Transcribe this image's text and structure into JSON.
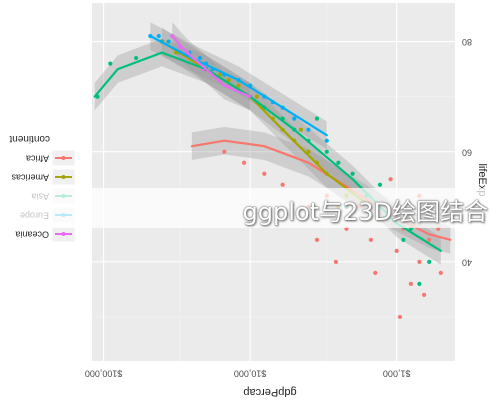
{
  "chart_data": {
    "type": "scatter",
    "orientation": "rotated-180",
    "xlabel": "gdpPercap",
    "ylabel": "lifeExp",
    "x_scale": "log10",
    "xlim": [
      400,
      120000
    ],
    "ylim": [
      22,
      87
    ],
    "x_ticks": [
      {
        "value": 1000,
        "label": "$1,000"
      },
      {
        "value": 10000,
        "label": "$10,000"
      },
      {
        "value": 100000,
        "label": "$100,000"
      }
    ],
    "y_ticks": [
      {
        "value": 40,
        "label": "40"
      },
      {
        "value": 60,
        "label": "60"
      },
      {
        "value": 80,
        "label": "80"
      }
    ],
    "grid": true,
    "smoothers": true,
    "legend": {
      "title": "continent",
      "placement": "left",
      "entries": [
        {
          "name": "Africa",
          "color": "#F8766D"
        },
        {
          "name": "Americas",
          "color": "#A3A500"
        },
        {
          "name": "Asia",
          "color": "#00BF7D"
        },
        {
          "name": "Europe",
          "color": "#00B0F6"
        },
        {
          "name": "Oceania",
          "color": "#E76BF3"
        }
      ]
    },
    "series": [
      {
        "name": "Africa",
        "color": "#F8766D",
        "points": [
          [
            500,
            38
          ],
          [
            600,
            44
          ],
          [
            700,
            40
          ],
          [
            800,
            36
          ],
          [
            900,
            46
          ],
          [
            1000,
            42
          ],
          [
            1200,
            48
          ],
          [
            1500,
            44
          ],
          [
            1800,
            50
          ],
          [
            2200,
            46
          ],
          [
            3000,
            52
          ],
          [
            4000,
            50
          ],
          [
            6000,
            54
          ],
          [
            8000,
            56
          ],
          [
            11000,
            58
          ],
          [
            15000,
            60
          ],
          [
            700,
            52
          ],
          [
            1100,
            55
          ],
          [
            650,
            34
          ],
          [
            2600,
            40
          ],
          [
            1400,
            38
          ],
          [
            520,
            46
          ],
          [
            3500,
            44
          ],
          [
            950,
            30
          ]
        ],
        "smooth": [
          [
            430,
            44
          ],
          [
            600,
            45
          ],
          [
            1000,
            48
          ],
          [
            2000,
            53
          ],
          [
            4000,
            58
          ],
          [
            8000,
            61
          ],
          [
            15000,
            62
          ],
          [
            25000,
            61
          ]
        ]
      },
      {
        "name": "Americas",
        "color": "#A3A500",
        "points": [
          [
            1500,
            48
          ],
          [
            2200,
            52
          ],
          [
            3000,
            56
          ],
          [
            4000,
            60
          ],
          [
            5000,
            62
          ],
          [
            6000,
            64
          ],
          [
            7000,
            66
          ],
          [
            8000,
            68
          ],
          [
            10000,
            70
          ],
          [
            12000,
            72
          ],
          [
            16000,
            74
          ],
          [
            20000,
            75
          ],
          [
            26000,
            77
          ],
          [
            32000,
            78
          ],
          [
            40000,
            80
          ],
          [
            3500,
            58
          ],
          [
            4500,
            64
          ],
          [
            9000,
            70
          ],
          [
            14000,
            73
          ],
          [
            2500,
            50
          ]
        ],
        "smooth": [
          [
            1500,
            50
          ],
          [
            3000,
            56
          ],
          [
            6000,
            64
          ],
          [
            10000,
            70
          ],
          [
            20000,
            75
          ],
          [
            40000,
            80
          ]
        ]
      },
      {
        "name": "Asia",
        "color": "#00BF7D",
        "points": [
          [
            600,
            40
          ],
          [
            900,
            44
          ],
          [
            1200,
            48
          ],
          [
            1600,
            52
          ],
          [
            2000,
            56
          ],
          [
            2500,
            58
          ],
          [
            3000,
            60
          ],
          [
            4000,
            62
          ],
          [
            5000,
            64
          ],
          [
            6000,
            66
          ],
          [
            8000,
            68
          ],
          [
            10000,
            70
          ],
          [
            14000,
            72
          ],
          [
            20000,
            75
          ],
          [
            30000,
            78
          ],
          [
            40000,
            80
          ],
          [
            60000,
            77
          ],
          [
            90000,
            76
          ],
          [
            110000,
            70
          ],
          [
            800,
            46
          ],
          [
            1300,
            54
          ],
          [
            2200,
            50
          ],
          [
            3500,
            66
          ],
          [
            700,
            36
          ]
        ],
        "smooth": [
          [
            500,
            42
          ],
          [
            1000,
            47
          ],
          [
            2000,
            55
          ],
          [
            5000,
            64
          ],
          [
            10000,
            70
          ],
          [
            20000,
            75
          ],
          [
            40000,
            78
          ],
          [
            80000,
            75
          ],
          [
            115000,
            70
          ]
        ]
      },
      {
        "name": "Europe",
        "color": "#00B0F6",
        "points": [
          [
            3000,
            62
          ],
          [
            4000,
            64
          ],
          [
            5000,
            66
          ],
          [
            6000,
            68
          ],
          [
            8000,
            70
          ],
          [
            10000,
            72
          ],
          [
            12000,
            73
          ],
          [
            15000,
            74
          ],
          [
            18000,
            75
          ],
          [
            22000,
            77
          ],
          [
            26000,
            78
          ],
          [
            30000,
            79
          ],
          [
            36000,
            80
          ],
          [
            42000,
            81
          ],
          [
            48000,
            81
          ],
          [
            7000,
            69
          ],
          [
            20000,
            76
          ]
        ],
        "smooth": [
          [
            3000,
            63
          ],
          [
            6000,
            68
          ],
          [
            12000,
            73
          ],
          [
            25000,
            77
          ],
          [
            48000,
            81
          ]
        ]
      },
      {
        "name": "Oceania",
        "color": "#E76BF3",
        "points": [
          [
            10000,
            70
          ],
          [
            12000,
            71
          ],
          [
            14000,
            72
          ],
          [
            16000,
            73
          ],
          [
            18000,
            74
          ],
          [
            21000,
            75
          ],
          [
            24000,
            76
          ],
          [
            27000,
            78
          ],
          [
            30000,
            79
          ],
          [
            34000,
            81
          ]
        ],
        "smooth": [
          [
            10000,
            70
          ],
          [
            15000,
            72
          ],
          [
            20000,
            75
          ],
          [
            27000,
            78
          ],
          [
            34000,
            81
          ]
        ]
      }
    ]
  },
  "watermark": "ggplot与23D绘图结合"
}
